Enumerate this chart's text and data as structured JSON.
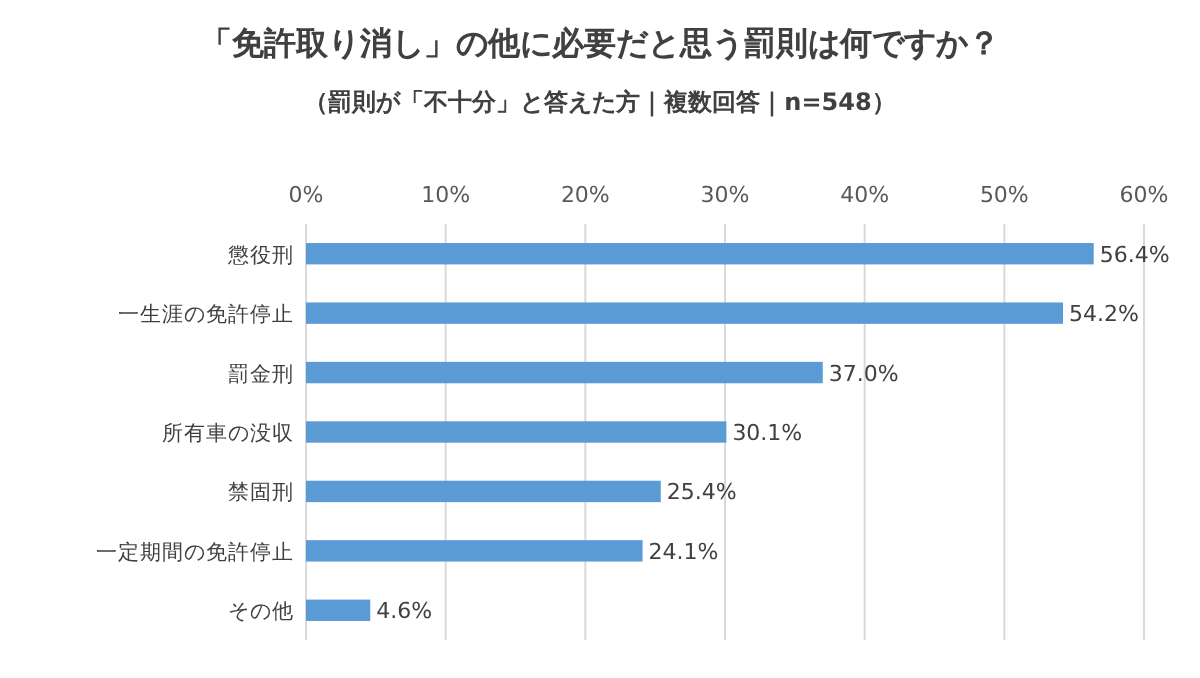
{
  "chart_data": {
    "type": "bar",
    "orientation": "horizontal",
    "title": "「免許取り消し」の他に必要だと思う罰則は何ですか？",
    "subtitle": "（罰則が「不十分」と答えた方｜複数回答｜n=548）",
    "categories": [
      "懲役刑",
      "一生涯の免許停止",
      "罰金刑",
      "所有車の没収",
      "禁固刑",
      "一定期間の免許停止",
      "その他"
    ],
    "values": [
      56.4,
      54.2,
      37.0,
      30.1,
      25.4,
      24.1,
      4.6
    ],
    "value_labels": [
      "56.4%",
      "54.2%",
      "37.0%",
      "30.1%",
      "25.4%",
      "24.1%",
      "4.6%"
    ],
    "color": "#5b9bd5",
    "xlim": [
      0,
      60
    ],
    "xticks": [
      {
        "value": 0,
        "label": "0%"
      },
      {
        "value": 10,
        "label": "10%"
      },
      {
        "value": 20,
        "label": "20%"
      },
      {
        "value": 30,
        "label": "30%"
      },
      {
        "value": 40,
        "label": "40%"
      },
      {
        "value": 50,
        "label": "50%"
      },
      {
        "value": 60,
        "label": "60%"
      }
    ],
    "grid": "x"
  }
}
